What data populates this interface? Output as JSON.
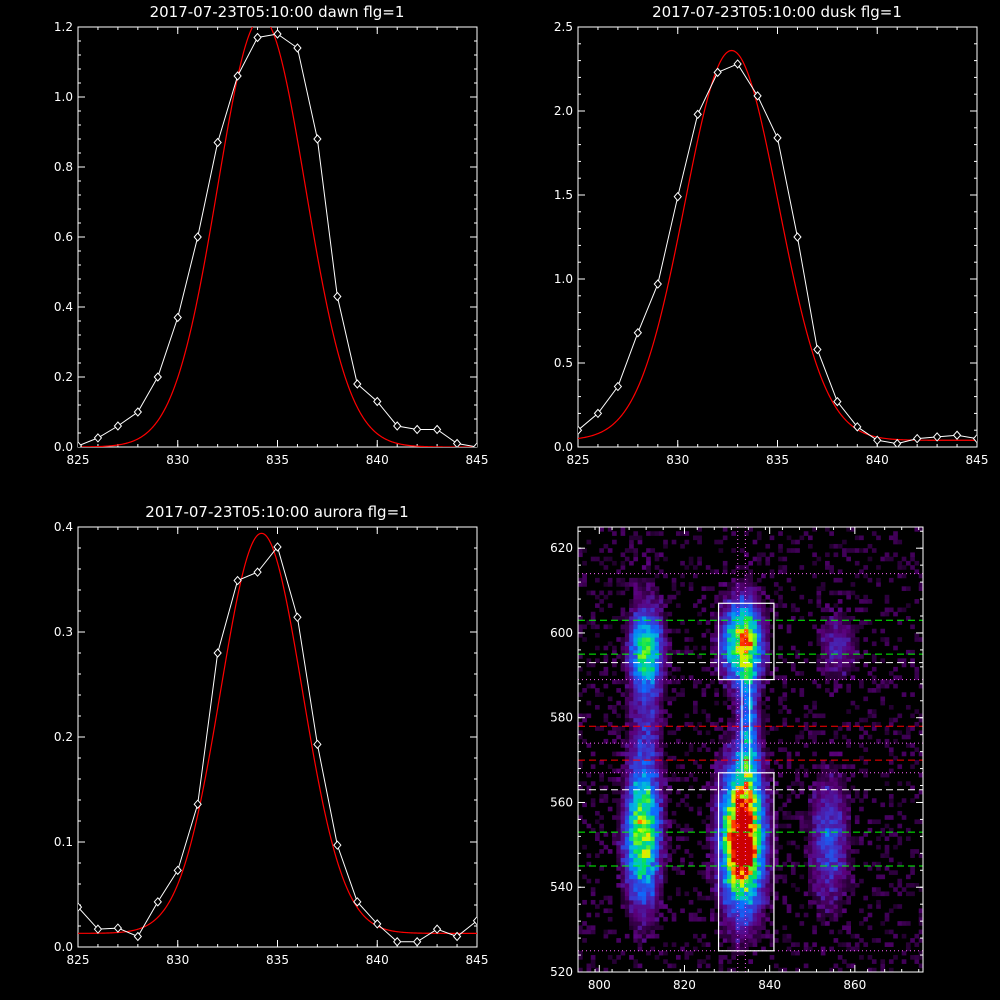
{
  "chart_data": [
    {
      "type": "line",
      "title": "2017-07-23T05:10:00 dawn flg=1",
      "xlim": [
        825,
        845
      ],
      "ylim": [
        0,
        1.2
      ],
      "xticks": [
        825,
        830,
        835,
        840,
        845
      ],
      "yticks": [
        0.0,
        0.2,
        0.4,
        0.6,
        0.8,
        1.0,
        1.2
      ],
      "ytick_labels": [
        "0.0",
        "0.2",
        "0.4",
        "0.6",
        "0.8",
        "1.0",
        "1.2"
      ],
      "series": [
        {
          "color": "#ffffff",
          "marker": "diamond",
          "x": [
            825,
            826,
            827,
            828,
            829,
            830,
            831,
            832,
            833,
            834,
            835,
            836,
            837,
            838,
            839,
            840,
            841,
            842,
            843,
            844,
            845
          ],
          "y": [
            0.003,
            0.026,
            0.06,
            0.1,
            0.2,
            0.37,
            0.6,
            0.87,
            1.06,
            1.17,
            1.18,
            1.14,
            0.88,
            0.43,
            0.18,
            0.13,
            0.06,
            0.05,
            0.05,
            0.01,
            0.0
          ]
        },
        {
          "color": "#ff0000",
          "model": "gaussian",
          "amp": 1.226,
          "center": 834.2,
          "sigma": 2.2,
          "offset": 0.0
        }
      ]
    },
    {
      "type": "line",
      "title": "2017-07-23T05:10:00 dusk flg=1",
      "xlim": [
        825,
        845
      ],
      "ylim": [
        0,
        2.5
      ],
      "xticks": [
        825,
        830,
        835,
        840,
        845
      ],
      "yticks": [
        0.0,
        0.5,
        1.0,
        1.5,
        2.0,
        2.5
      ],
      "ytick_labels": [
        "0.0",
        "0.5",
        "1.0",
        "1.5",
        "2.0",
        "2.5"
      ],
      "series": [
        {
          "color": "#ffffff",
          "marker": "diamond",
          "x": [
            825,
            826,
            827,
            828,
            829,
            830,
            831,
            832,
            833,
            834,
            835,
            836,
            837,
            838,
            839,
            840,
            841,
            842,
            843,
            844,
            845
          ],
          "y": [
            0.1,
            0.2,
            0.36,
            0.68,
            0.97,
            1.49,
            1.98,
            2.23,
            2.28,
            2.09,
            1.84,
            1.25,
            0.58,
            0.27,
            0.12,
            0.04,
            0.02,
            0.05,
            0.06,
            0.07,
            0.05
          ]
        },
        {
          "color": "#ff0000",
          "model": "gaussian",
          "amp": 2.32,
          "center": 832.7,
          "sigma": 2.35,
          "offset": 0.04
        }
      ]
    },
    {
      "type": "line",
      "title": "2017-07-23T05:10:00 aurora flg=1",
      "xlim": [
        825,
        845
      ],
      "ylim": [
        0,
        0.4
      ],
      "xticks": [
        825,
        830,
        835,
        840,
        845
      ],
      "yticks": [
        0.0,
        0.1,
        0.2,
        0.3,
        0.4
      ],
      "ytick_labels": [
        "0.0",
        "0.1",
        "0.2",
        "0.3",
        "0.4"
      ],
      "series": [
        {
          "color": "#ffffff",
          "marker": "diamond",
          "x": [
            825,
            826,
            827,
            828,
            829,
            830,
            831,
            832,
            833,
            834,
            835,
            836,
            837,
            838,
            839,
            840,
            841,
            842,
            843,
            844,
            845
          ],
          "y": [
            0.038,
            0.017,
            0.018,
            0.01,
            0.043,
            0.073,
            0.136,
            0.28,
            0.349,
            0.357,
            0.381,
            0.314,
            0.193,
            0.097,
            0.043,
            0.022,
            0.005,
            0.005,
            0.017,
            0.01,
            0.025
          ]
        },
        {
          "color": "#ff0000",
          "model": "gaussian",
          "amp": 0.381,
          "center": 834.2,
          "sigma": 2.05,
          "offset": 0.013
        }
      ]
    },
    {
      "type": "heatmap",
      "xlim": [
        795,
        876
      ],
      "ylim": [
        520,
        625
      ],
      "xticks": [
        800,
        820,
        840,
        860
      ],
      "yticks": [
        520,
        540,
        560,
        580,
        600,
        620
      ],
      "colormap": [
        "#000000",
        "#5a007a",
        "#3f33cc",
        "#0a6fff",
        "#00c2d8",
        "#00e05a",
        "#b8ff00",
        "#ffd700",
        "#ff3300",
        "#cc0000"
      ],
      "blobs": [
        {
          "x": 833.5,
          "y": 552,
          "sx": 3.2,
          "sy": 11,
          "amp": 1.0
        },
        {
          "x": 833.5,
          "y": 549,
          "sx": 1.8,
          "sy": 4,
          "amp": 0.45
        },
        {
          "x": 833.5,
          "y": 598,
          "sx": 3.0,
          "sy": 6,
          "amp": 0.68
        },
        {
          "x": 835,
          "y": 578,
          "sx": 1.6,
          "sy": 16,
          "amp": 0.3
        },
        {
          "x": 810,
          "y": 552,
          "sx": 2.6,
          "sy": 10,
          "amp": 0.58
        },
        {
          "x": 811,
          "y": 596,
          "sx": 2.5,
          "sy": 6,
          "amp": 0.47
        },
        {
          "x": 811,
          "y": 575,
          "sx": 2.5,
          "sy": 22,
          "amp": 0.16
        },
        {
          "x": 854,
          "y": 551,
          "sx": 3.0,
          "sy": 10,
          "amp": 0.24
        },
        {
          "x": 856,
          "y": 597,
          "sx": 3.0,
          "sy": 5,
          "amp": 0.16
        }
      ],
      "boxes": [
        {
          "x0": 828,
          "x1": 841,
          "y0": 589,
          "y1": 607
        },
        {
          "x0": 828,
          "x1": 841,
          "y0": 525,
          "y1": 567
        }
      ],
      "box_connectors": [
        {
          "x": 833.5
        },
        {
          "x": 835.3
        }
      ],
      "vlines": [
        {
          "x": 832.5,
          "color": "#ff66ff",
          "style": "dotted"
        },
        {
          "x": 834.3,
          "color": "#ff66ff",
          "style": "dotted"
        }
      ],
      "hlines": [
        {
          "y": 614,
          "color": "#ff66ff",
          "style": "dotted"
        },
        {
          "y": 603,
          "color": "#00ff00",
          "style": "dashed"
        },
        {
          "y": 595,
          "color": "#00ff00",
          "style": "dashed"
        },
        {
          "y": 593,
          "color": "#ffffff",
          "style": "dashed"
        },
        {
          "y": 589,
          "color": "#ff66ff",
          "style": "dotted"
        },
        {
          "y": 578,
          "color": "#ff0000",
          "style": "dashed"
        },
        {
          "y": 574,
          "color": "#ff66ff",
          "style": "dotted"
        },
        {
          "y": 570,
          "color": "#ff0000",
          "style": "dashed"
        },
        {
          "y": 567,
          "color": "#ff66ff",
          "style": "dotted"
        },
        {
          "y": 563,
          "color": "#ffffff",
          "style": "dashed"
        },
        {
          "y": 553,
          "color": "#00ff00",
          "style": "dashed"
        },
        {
          "y": 545,
          "color": "#00ff00",
          "style": "dashed"
        },
        {
          "y": 525,
          "color": "#ff66ff",
          "style": "dotted"
        }
      ]
    }
  ]
}
